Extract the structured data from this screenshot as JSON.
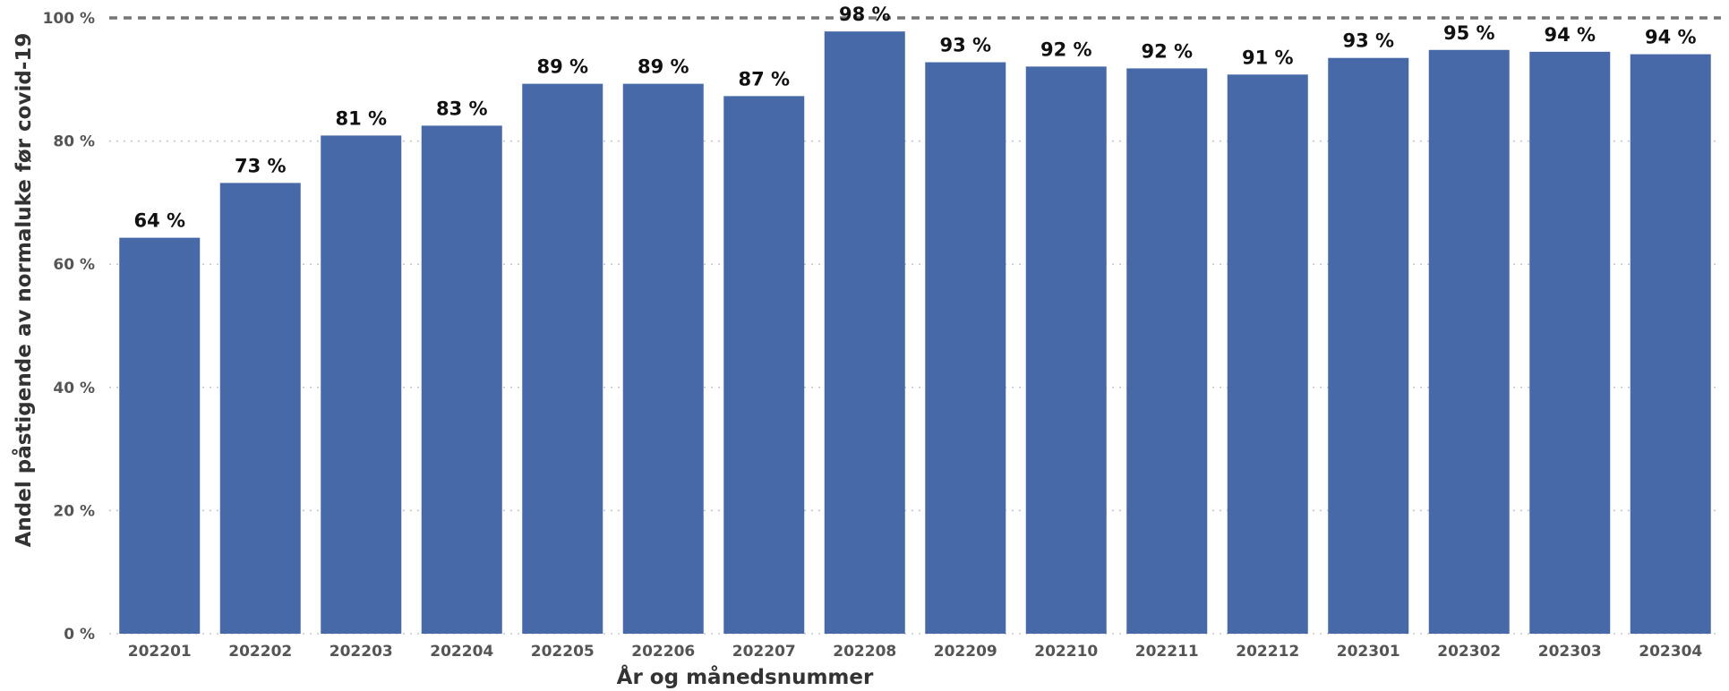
{
  "chart_data": {
    "type": "bar",
    "title": "",
    "xlabel": "År og månedsnummer",
    "ylabel": "Andel påstigende av normaluke før covid-19",
    "categories": [
      "202201",
      "202202",
      "202203",
      "202204",
      "202205",
      "202206",
      "202207",
      "202208",
      "202209",
      "202210",
      "202211",
      "202212",
      "202301",
      "202302",
      "202303",
      "202304"
    ],
    "values": [
      64.3,
      73.2,
      80.9,
      82.5,
      89.3,
      89.3,
      87.3,
      97.8,
      92.8,
      92.1,
      91.8,
      90.8,
      93.5,
      94.8,
      94.5,
      94.1
    ],
    "data_labels": [
      "64 %",
      "73 %",
      "81 %",
      "83 %",
      "89 %",
      "89 %",
      "87 %",
      "98 %",
      "93 %",
      "92 %",
      "92 %",
      "91 %",
      "93 %",
      "95 %",
      "94 %",
      "94 %"
    ],
    "ylim": [
      0,
      100
    ],
    "yticks": [
      0,
      20,
      40,
      60,
      80,
      100
    ],
    "ytick_labels": [
      "0 %",
      "20 %",
      "40 %",
      "60 %",
      "80 %",
      "100 %"
    ],
    "grid": true,
    "reference_line": 100,
    "colors": {
      "bar": "#4869A8",
      "grid": "#c8c8c8",
      "reference_line": "#777777"
    }
  }
}
